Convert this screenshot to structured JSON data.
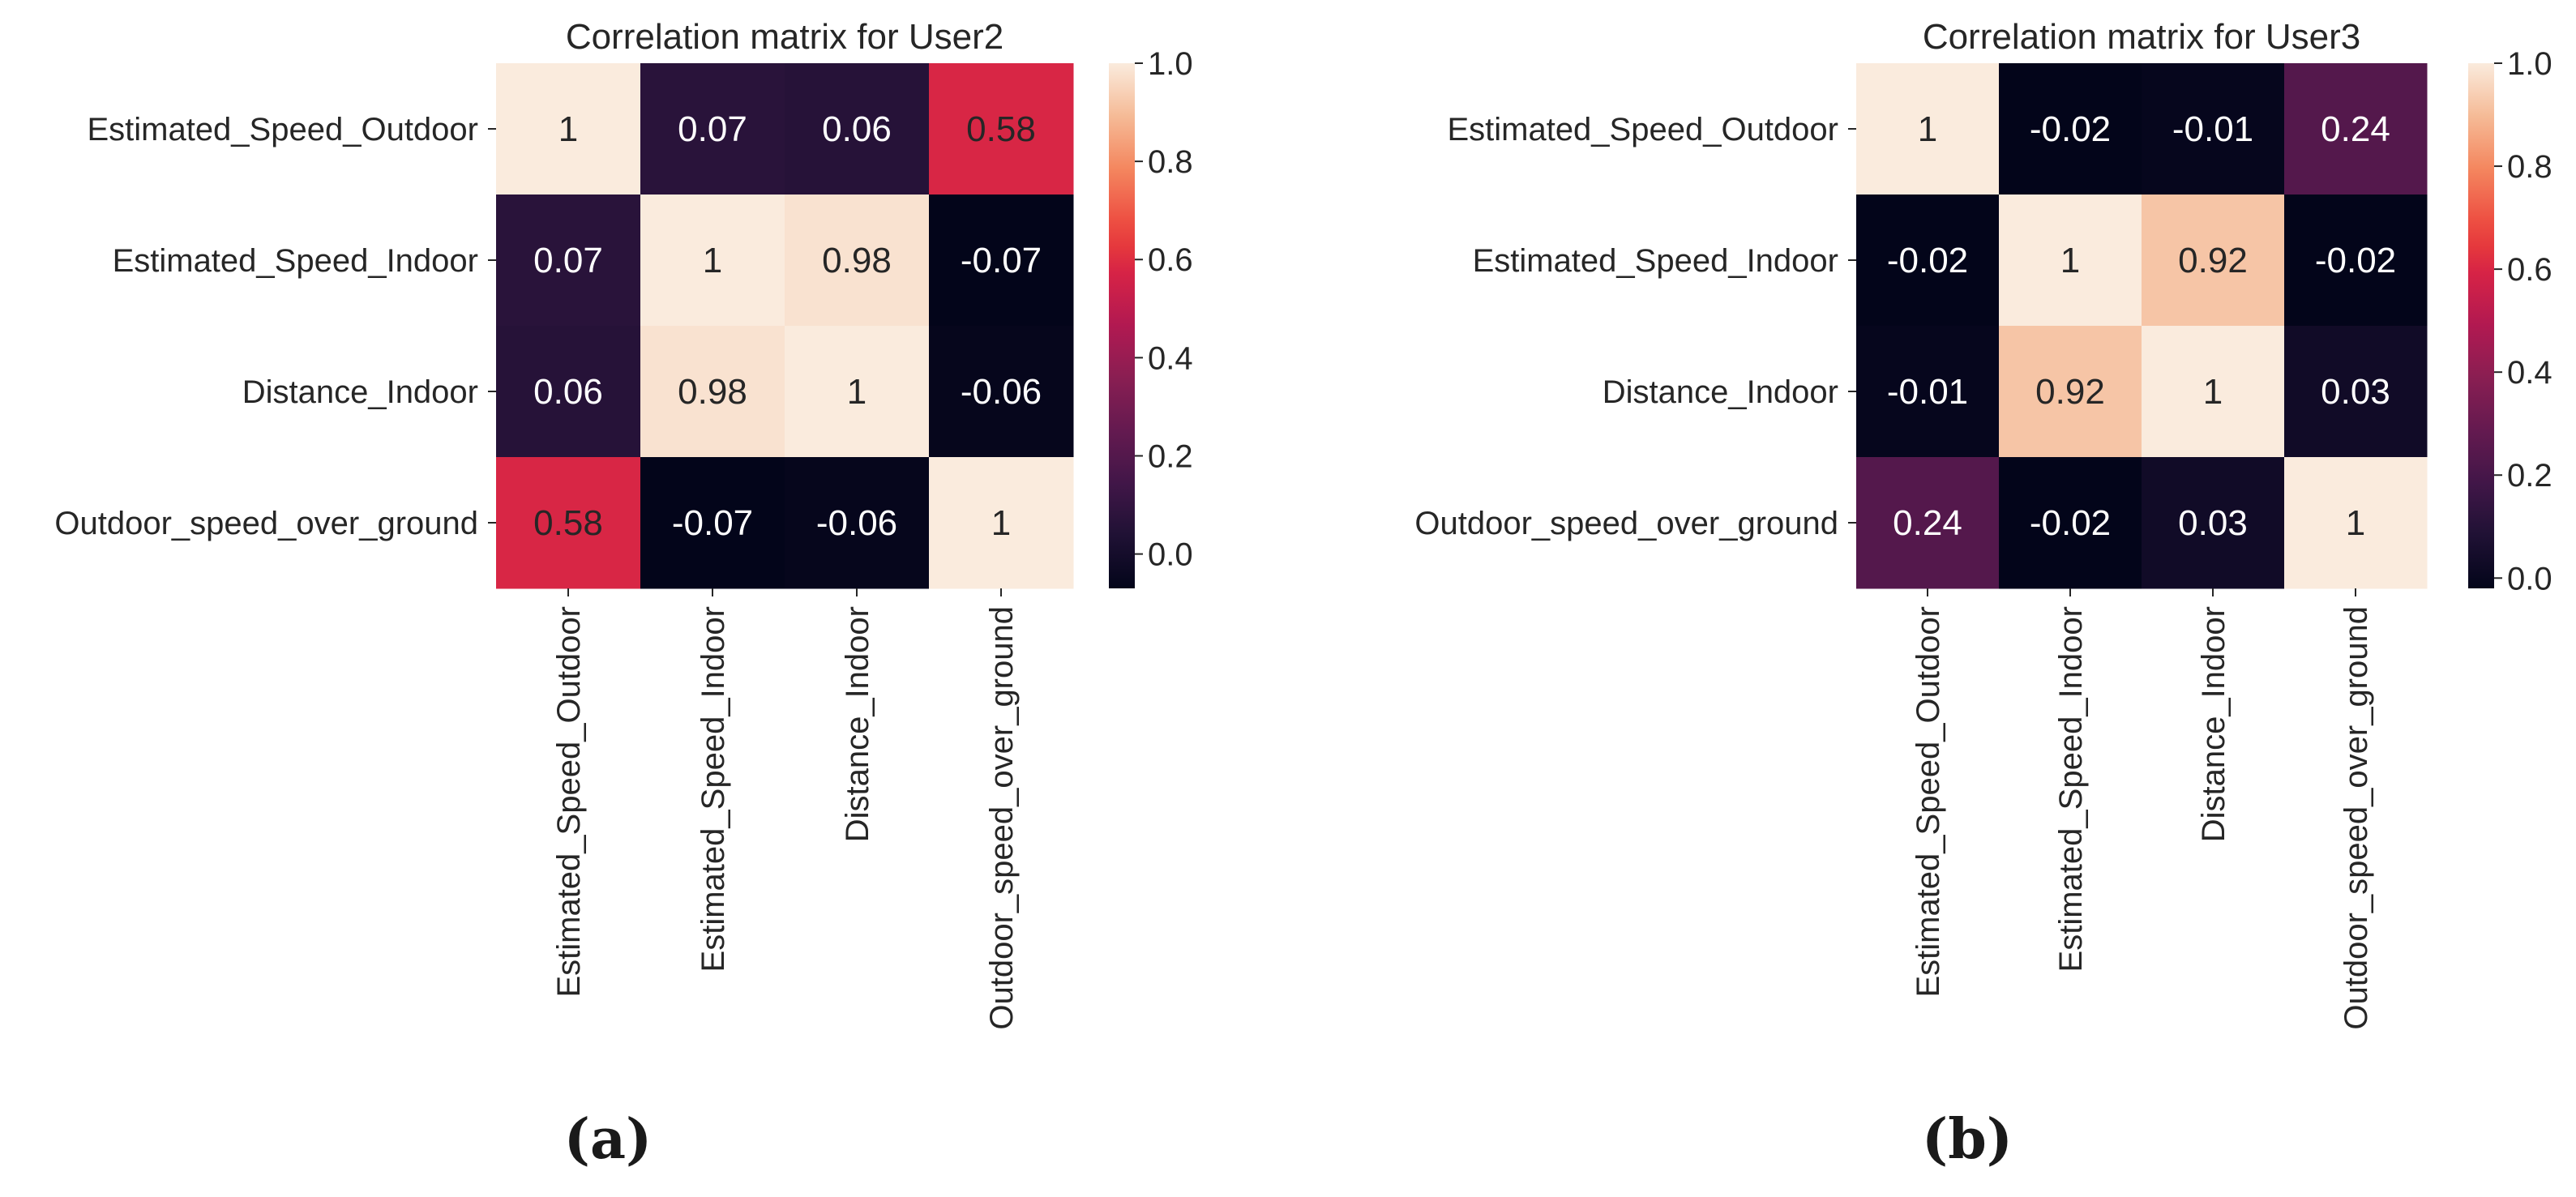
{
  "chart_data": [
    {
      "type": "heatmap",
      "title": "Correlation matrix for User2",
      "panel_label": "(a)",
      "row_labels": [
        "Estimated_Speed_Outdoor",
        "Estimated_Speed_Indoor",
        "Distance_Indoor",
        "Outdoor_speed_over_ground"
      ],
      "col_labels": [
        "Estimated_Speed_Outdoor",
        "Estimated_Speed_Indoor",
        "Distance_Indoor",
        "Outdoor_speed_over_ground"
      ],
      "values": [
        [
          1,
          0.07,
          0.06,
          0.58
        ],
        [
          0.07,
          1,
          0.98,
          -0.07
        ],
        [
          0.06,
          0.98,
          1,
          -0.06
        ],
        [
          0.58,
          -0.07,
          -0.06,
          1
        ]
      ],
      "cell_labels": [
        [
          "1",
          "0.07",
          "0.06",
          "0.58"
        ],
        [
          "0.07",
          "1",
          "0.98",
          "-0.07"
        ],
        [
          "0.06",
          "0.98",
          "1",
          "-0.06"
        ],
        [
          "0.58",
          "-0.07",
          "-0.06",
          "1"
        ]
      ],
      "colorbar": {
        "vmin": -0.07,
        "vmax": 1.0,
        "ticks": [
          0.0,
          0.2,
          0.4,
          0.6,
          0.8,
          1.0
        ],
        "tick_labels": [
          "0.0",
          "0.2",
          "0.4",
          "0.6",
          "0.8",
          "1.0"
        ],
        "colormap": "rocket"
      }
    },
    {
      "type": "heatmap",
      "title": "Correlation matrix for User3",
      "panel_label": "(b)",
      "row_labels": [
        "Estimated_Speed_Outdoor",
        "Estimated_Speed_Indoor",
        "Distance_Indoor",
        "Outdoor_speed_over_ground"
      ],
      "col_labels": [
        "Estimated_Speed_Outdoor",
        "Estimated_Speed_Indoor",
        "Distance_Indoor",
        "Outdoor_speed_over_ground"
      ],
      "values": [
        [
          1,
          -0.02,
          -0.01,
          0.24
        ],
        [
          -0.02,
          1,
          0.92,
          -0.02
        ],
        [
          -0.01,
          0.92,
          1,
          0.03
        ],
        [
          0.24,
          -0.02,
          0.03,
          1
        ]
      ],
      "cell_labels": [
        [
          "1",
          "-0.02",
          "-0.01",
          "0.24"
        ],
        [
          "-0.02",
          "1",
          "0.92",
          "-0.02"
        ],
        [
          "-0.01",
          "0.92",
          "1",
          "0.03"
        ],
        [
          "0.24",
          "-0.02",
          "0.03",
          "1"
        ]
      ],
      "colorbar": {
        "vmin": -0.02,
        "vmax": 1.0,
        "ticks": [
          0.0,
          0.2,
          0.4,
          0.6,
          0.8,
          1.0
        ],
        "tick_labels": [
          "0.0",
          "0.2",
          "0.4",
          "0.6",
          "0.8",
          "1.0"
        ],
        "colormap": "rocket"
      }
    }
  ]
}
